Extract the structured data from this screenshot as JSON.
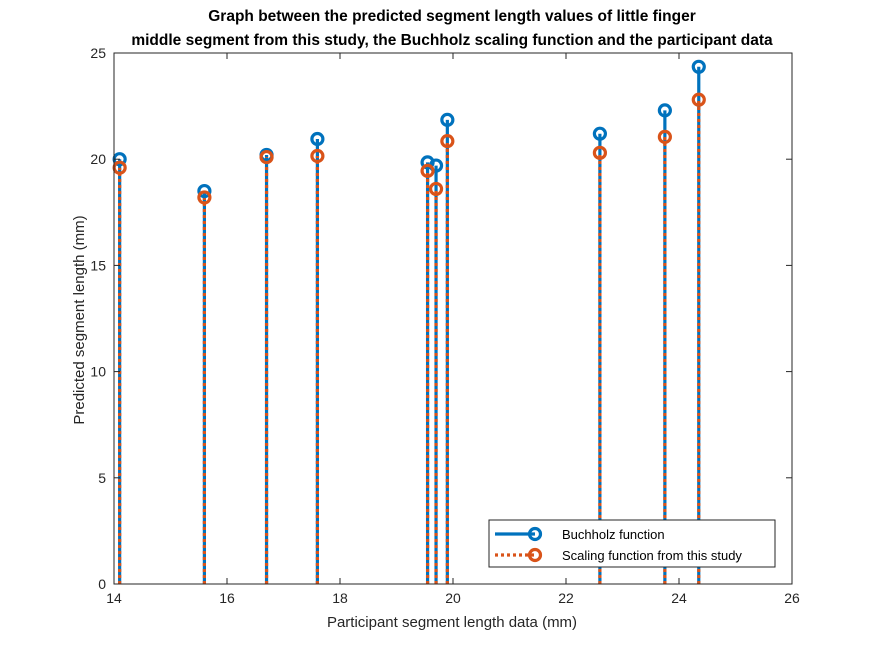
{
  "chart_data": {
    "type": "stem",
    "title_lines": [
      "Graph between the predicted segment length values of little finger",
      "middle segment from this study, the Buchholz scaling function and the participant data"
    ],
    "xlabel": "Participant segment length data (mm)",
    "ylabel": "Predicted segment length (mm)",
    "xlim": [
      14,
      26
    ],
    "ylim": [
      0,
      25
    ],
    "xticks": [
      14,
      16,
      18,
      20,
      22,
      24,
      26
    ],
    "yticks": [
      0,
      5,
      10,
      15,
      20,
      25
    ],
    "legend_position": "bottom-right",
    "grid": false,
    "series": [
      {
        "name": "Buchholz function",
        "color": "#0072BD",
        "line_style": "solid",
        "marker": "circle",
        "x": [
          14.1,
          15.6,
          16.7,
          17.6,
          19.55,
          19.7,
          19.9,
          22.6,
          23.75,
          24.35
        ],
        "y": [
          20.0,
          18.5,
          20.2,
          20.95,
          19.85,
          19.7,
          21.85,
          21.2,
          22.3,
          24.35
        ]
      },
      {
        "name": "Scaling function from this study",
        "color": "#D95319",
        "line_style": "dotted",
        "marker": "circle",
        "x": [
          14.1,
          15.6,
          16.7,
          17.6,
          19.55,
          19.7,
          19.9,
          22.6,
          23.75,
          24.35
        ],
        "y": [
          19.6,
          18.2,
          20.1,
          20.15,
          19.45,
          18.6,
          20.85,
          20.3,
          21.05,
          22.8
        ]
      }
    ]
  }
}
